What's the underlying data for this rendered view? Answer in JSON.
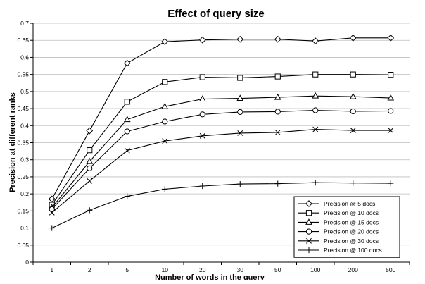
{
  "chart_data": {
    "type": "line",
    "title": "Effect of query size",
    "xlabel": "Number of words in the query",
    "ylabel": "Precision at different ranks",
    "categories": [
      "1",
      "2",
      "5",
      "10",
      "20",
      "30",
      "50",
      "100",
      "200",
      "500"
    ],
    "ylim": [
      0,
      0.7
    ],
    "yticks": [
      "0",
      "0.05",
      "0.1",
      "0.15",
      "0.2",
      "0.25",
      "0.3",
      "0.35",
      "0.4",
      "0.45",
      "0.5",
      "0.55",
      "0.6",
      "0.65",
      "0.7"
    ],
    "grid": "horizontal",
    "legend_position": "bottom-right",
    "line_color": "#000000",
    "series": [
      {
        "name": "Precision @ 5 docs",
        "marker": "diamond",
        "values": [
          0.185,
          0.385,
          0.583,
          0.646,
          0.651,
          0.653,
          0.653,
          0.648,
          0.657,
          0.657
        ]
      },
      {
        "name": "Precision @ 10 docs",
        "marker": "square",
        "values": [
          0.168,
          0.328,
          0.47,
          0.528,
          0.542,
          0.54,
          0.544,
          0.55,
          0.55,
          0.549
        ]
      },
      {
        "name": "Precision @ 15 docs",
        "marker": "triangle",
        "values": [
          0.16,
          0.295,
          0.418,
          0.456,
          0.478,
          0.48,
          0.483,
          0.487,
          0.485,
          0.481
        ]
      },
      {
        "name": "Precision @ 20 docs",
        "marker": "circle",
        "values": [
          0.155,
          0.275,
          0.383,
          0.412,
          0.433,
          0.44,
          0.441,
          0.445,
          0.442,
          0.443
        ]
      },
      {
        "name": "Precision @ 30 docs",
        "marker": "x",
        "values": [
          0.145,
          0.238,
          0.327,
          0.355,
          0.37,
          0.378,
          0.38,
          0.389,
          0.386,
          0.386
        ]
      },
      {
        "name": "Precision @ 100 docs",
        "marker": "plus",
        "values": [
          0.1,
          0.152,
          0.193,
          0.214,
          0.223,
          0.229,
          0.23,
          0.233,
          0.232,
          0.231
        ]
      }
    ]
  }
}
